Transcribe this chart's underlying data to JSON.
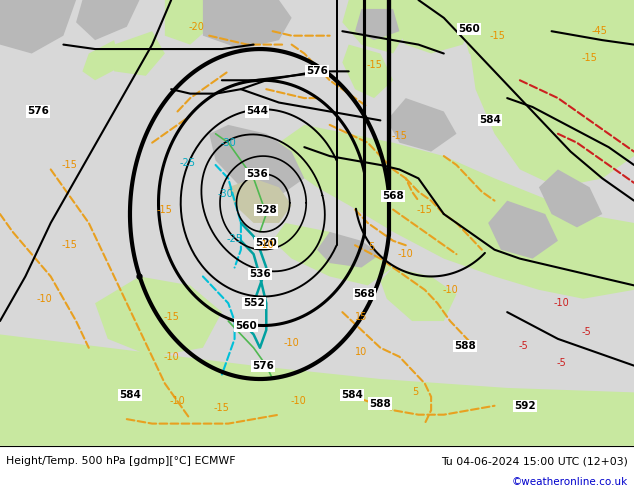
{
  "title_left": "Height/Temp. 500 hPa [gdmp][°C] ECMWF",
  "title_right": "Tu 04-06-2024 15:00 UTC (12+03)",
  "credit": "©weatheronline.co.uk",
  "bg_sea": "#d8d8d8",
  "bg_land_green": "#c8e8a0",
  "bg_land_gray": "#b8b8b8",
  "bg_land_light": "#d0d0c8",
  "footer_bg": "#ffffff",
  "footer_text_color": "#000000",
  "credit_color": "#0000cc"
}
